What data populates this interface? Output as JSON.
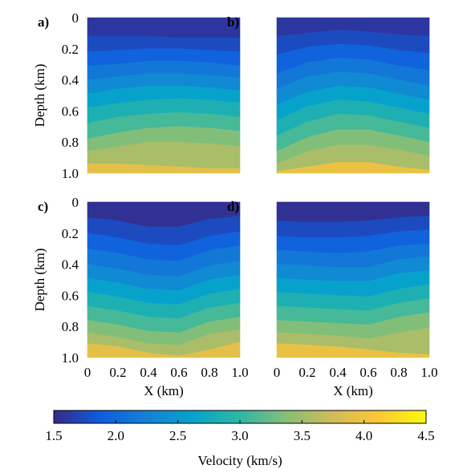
{
  "chart_data": {
    "type": "heatmap",
    "layout": "2x2 grid of velocity model panels with shared colorbar",
    "panels": [
      {
        "label": "a)",
        "layers_vel": [
          1.6,
          1.75,
          1.95,
          2.15,
          2.35,
          2.6,
          2.85,
          3.1,
          3.35,
          3.55,
          3.9
        ],
        "interfaces": [
          [
            0.12,
            0.12,
            0.12,
            0.13,
            0.13,
            0.13
          ],
          [
            0.22,
            0.21,
            0.2,
            0.2,
            0.21,
            0.22
          ],
          [
            0.31,
            0.3,
            0.28,
            0.28,
            0.29,
            0.31
          ],
          [
            0.4,
            0.38,
            0.36,
            0.36,
            0.37,
            0.39
          ],
          [
            0.49,
            0.46,
            0.44,
            0.44,
            0.45,
            0.47
          ],
          [
            0.58,
            0.55,
            0.53,
            0.52,
            0.53,
            0.55
          ],
          [
            0.68,
            0.64,
            0.62,
            0.61,
            0.62,
            0.64
          ],
          [
            0.78,
            0.74,
            0.71,
            0.7,
            0.71,
            0.73
          ],
          [
            0.86,
            0.83,
            0.8,
            0.8,
            0.81,
            0.83
          ],
          [
            0.94,
            0.94,
            0.95,
            0.96,
            0.97,
            0.97
          ]
        ]
      },
      {
        "label": "b)",
        "layers_vel": [
          1.6,
          1.75,
          1.95,
          2.15,
          2.35,
          2.6,
          2.85,
          3.1,
          3.35,
          3.55,
          3.95
        ],
        "interfaces": [
          [
            0.12,
            0.1,
            0.08,
            0.09,
            0.11,
            0.12
          ],
          [
            0.24,
            0.19,
            0.17,
            0.18,
            0.21,
            0.23
          ],
          [
            0.36,
            0.29,
            0.26,
            0.27,
            0.31,
            0.34
          ],
          [
            0.46,
            0.38,
            0.35,
            0.36,
            0.4,
            0.44
          ],
          [
            0.56,
            0.48,
            0.44,
            0.45,
            0.49,
            0.53
          ],
          [
            0.66,
            0.57,
            0.53,
            0.54,
            0.58,
            0.62
          ],
          [
            0.76,
            0.67,
            0.62,
            0.63,
            0.67,
            0.71
          ],
          [
            0.86,
            0.77,
            0.72,
            0.72,
            0.76,
            0.8
          ],
          [
            0.94,
            0.86,
            0.82,
            0.82,
            0.85,
            0.89
          ],
          [
            0.99,
            0.96,
            0.93,
            0.93,
            0.96,
            0.98
          ]
        ]
      },
      {
        "label": "c)",
        "layers_vel": [
          1.55,
          1.75,
          1.95,
          2.15,
          2.35,
          2.6,
          2.85,
          3.1,
          3.35,
          3.55,
          3.9
        ],
        "interfaces": [
          [
            0.1,
            0.12,
            0.16,
            0.16,
            0.11,
            0.09
          ],
          [
            0.2,
            0.23,
            0.27,
            0.28,
            0.22,
            0.19
          ],
          [
            0.3,
            0.33,
            0.37,
            0.38,
            0.31,
            0.28
          ],
          [
            0.4,
            0.43,
            0.47,
            0.48,
            0.41,
            0.38
          ],
          [
            0.49,
            0.52,
            0.56,
            0.57,
            0.5,
            0.47
          ],
          [
            0.58,
            0.61,
            0.65,
            0.66,
            0.59,
            0.56
          ],
          [
            0.67,
            0.7,
            0.74,
            0.75,
            0.68,
            0.65
          ],
          [
            0.76,
            0.79,
            0.83,
            0.84,
            0.77,
            0.74
          ],
          [
            0.84,
            0.87,
            0.91,
            0.92,
            0.85,
            0.82
          ],
          [
            0.91,
            0.93,
            0.97,
            0.99,
            0.95,
            0.9
          ]
        ]
      },
      {
        "label": "d)",
        "layers_vel": [
          1.55,
          1.75,
          1.95,
          2.15,
          2.35,
          2.6,
          2.85,
          3.1,
          3.35,
          3.55,
          3.95
        ],
        "interfaces": [
          [
            0.12,
            0.13,
            0.13,
            0.12,
            0.1,
            0.09
          ],
          [
            0.22,
            0.23,
            0.23,
            0.22,
            0.19,
            0.18
          ],
          [
            0.31,
            0.32,
            0.33,
            0.32,
            0.28,
            0.27
          ],
          [
            0.4,
            0.41,
            0.42,
            0.42,
            0.37,
            0.35
          ],
          [
            0.49,
            0.5,
            0.51,
            0.51,
            0.46,
            0.44
          ],
          [
            0.58,
            0.59,
            0.6,
            0.61,
            0.56,
            0.53
          ],
          [
            0.67,
            0.68,
            0.69,
            0.7,
            0.65,
            0.62
          ],
          [
            0.76,
            0.77,
            0.78,
            0.79,
            0.74,
            0.71
          ],
          [
            0.84,
            0.85,
            0.86,
            0.88,
            0.84,
            0.81
          ],
          [
            0.91,
            0.92,
            0.93,
            0.95,
            0.97,
            0.98
          ]
        ]
      }
    ],
    "x_ticks": [
      0,
      0.2,
      0.4,
      0.6,
      0.8,
      1.0
    ],
    "x_tick_labels": [
      "0",
      "0.2",
      "0.4",
      "0.6",
      "0.8",
      "1.0"
    ],
    "y_ticks": [
      0,
      0.2,
      0.4,
      0.6,
      0.8,
      1.0
    ],
    "y_tick_labels": [
      "0",
      "0.2",
      "0.4",
      "0.6",
      "0.8",
      "1.0"
    ],
    "xlabel": "X (km)",
    "ylabel": "Depth (km)",
    "xlim": [
      0,
      1
    ],
    "ylim": [
      0,
      1
    ],
    "colorbar": {
      "label": "Velocity (km/s)",
      "range": [
        1.5,
        4.5
      ],
      "ticks": [
        1.5,
        2.0,
        2.5,
        3.0,
        3.5,
        4.0,
        4.5
      ],
      "tick_labels": [
        "1.5",
        "2.0",
        "2.5",
        "3.0",
        "3.5",
        "4.0",
        "4.5"
      ],
      "colormap": "parula",
      "colormap_stops": [
        "#352a87",
        "#0f5cdd",
        "#1481d6",
        "#06a4ca",
        "#2eb7a4",
        "#87bf77",
        "#d1bb59",
        "#fec832",
        "#f9fb0e"
      ]
    }
  }
}
